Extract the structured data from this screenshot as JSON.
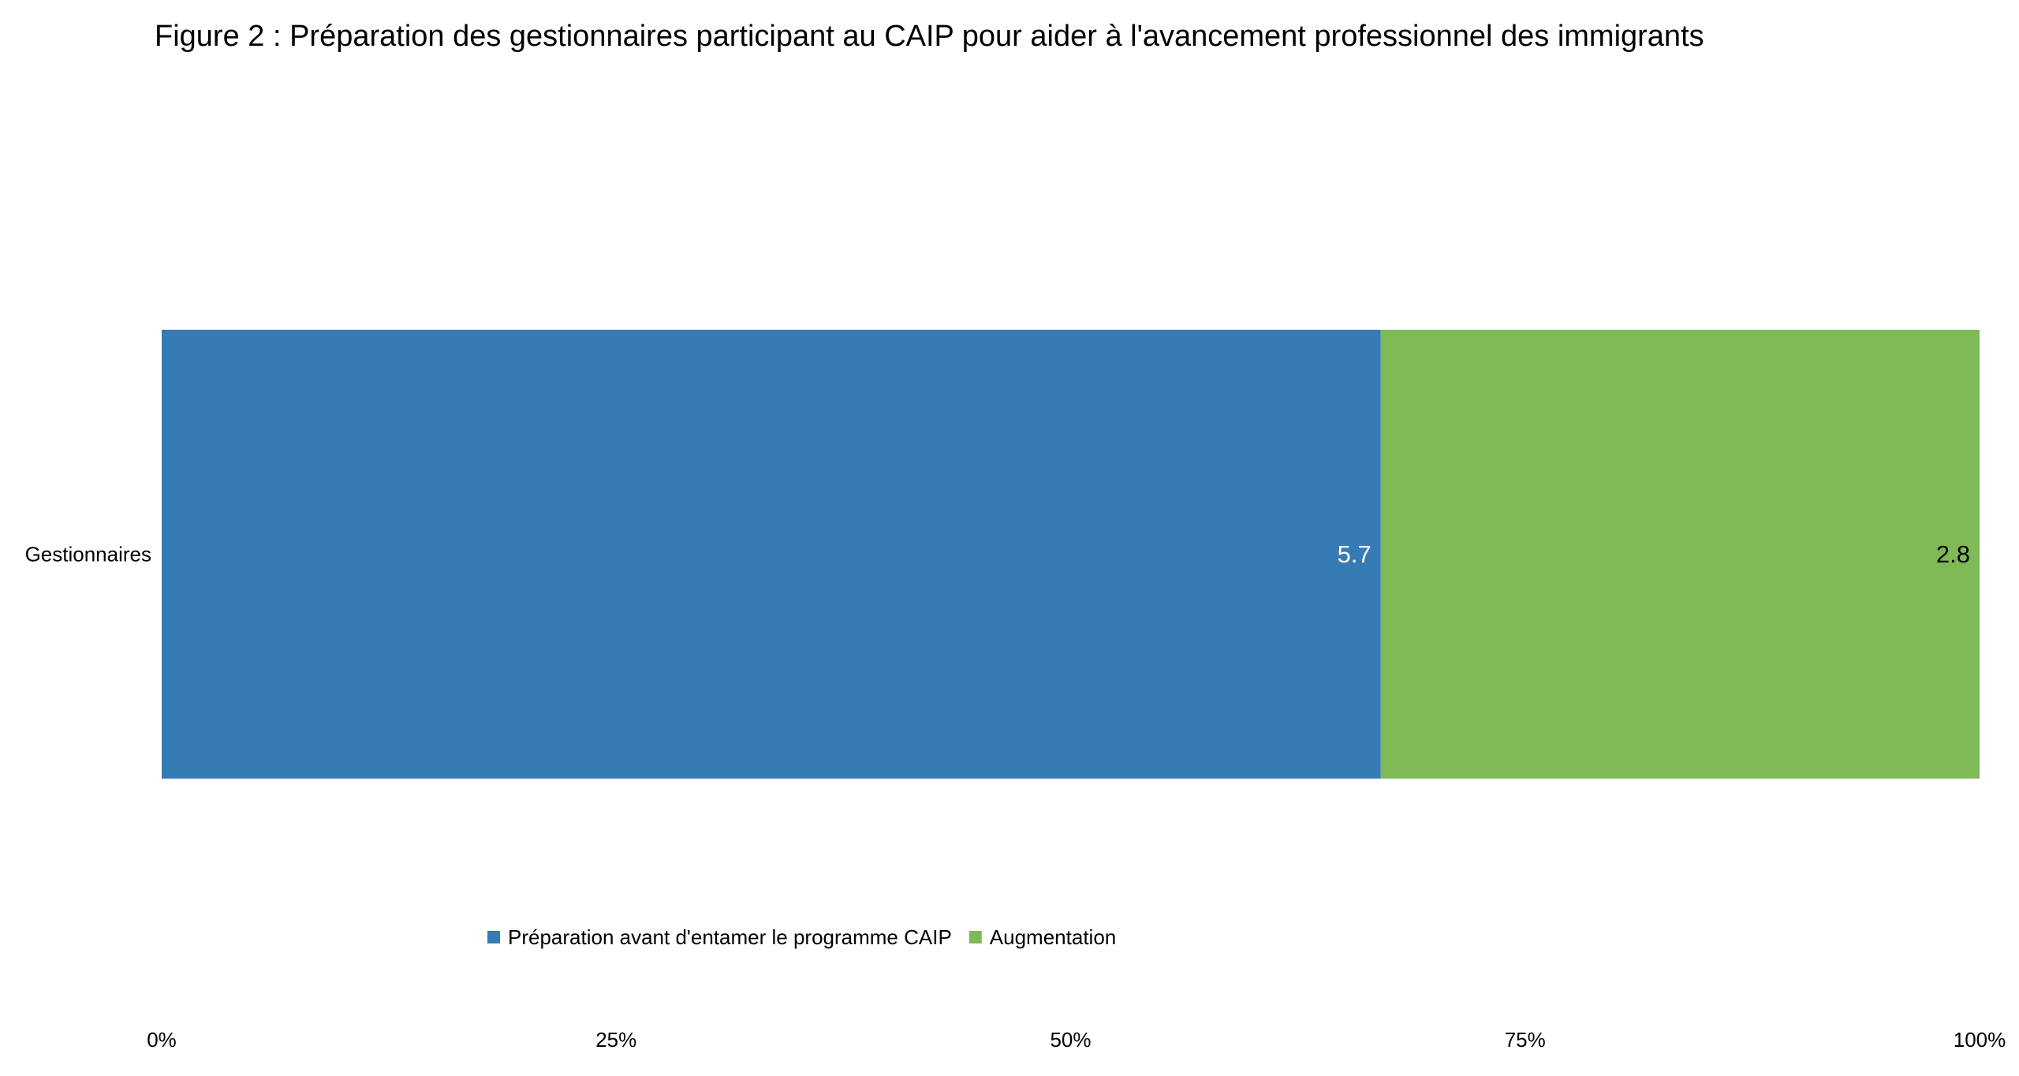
{
  "chart_data": {
    "type": "bar",
    "orientation": "horizontal",
    "stacked": "percent",
    "title": "Figure 2 : Préparation des gestionnaires participant au CAIP pour aider à l'avancement professionnel des immigrants",
    "categories": [
      "Gestionnaires"
    ],
    "series": [
      {
        "name": "Préparation avant d'entamer le programme CAIP",
        "values": [
          5.7
        ],
        "color": "#377bb5",
        "label_color": "#ffffff"
      },
      {
        "name": "Augmentation",
        "values": [
          2.8
        ],
        "color": "#7fba56",
        "label_color": "#000000"
      }
    ],
    "xaxis": {
      "ticks": [
        0,
        25,
        50,
        75,
        100
      ],
      "tick_labels": [
        "0%",
        "25%",
        "50%",
        "75%",
        "100%"
      ],
      "range": [
        0,
        100
      ]
    },
    "grid": false,
    "legend_position": "bottom"
  }
}
